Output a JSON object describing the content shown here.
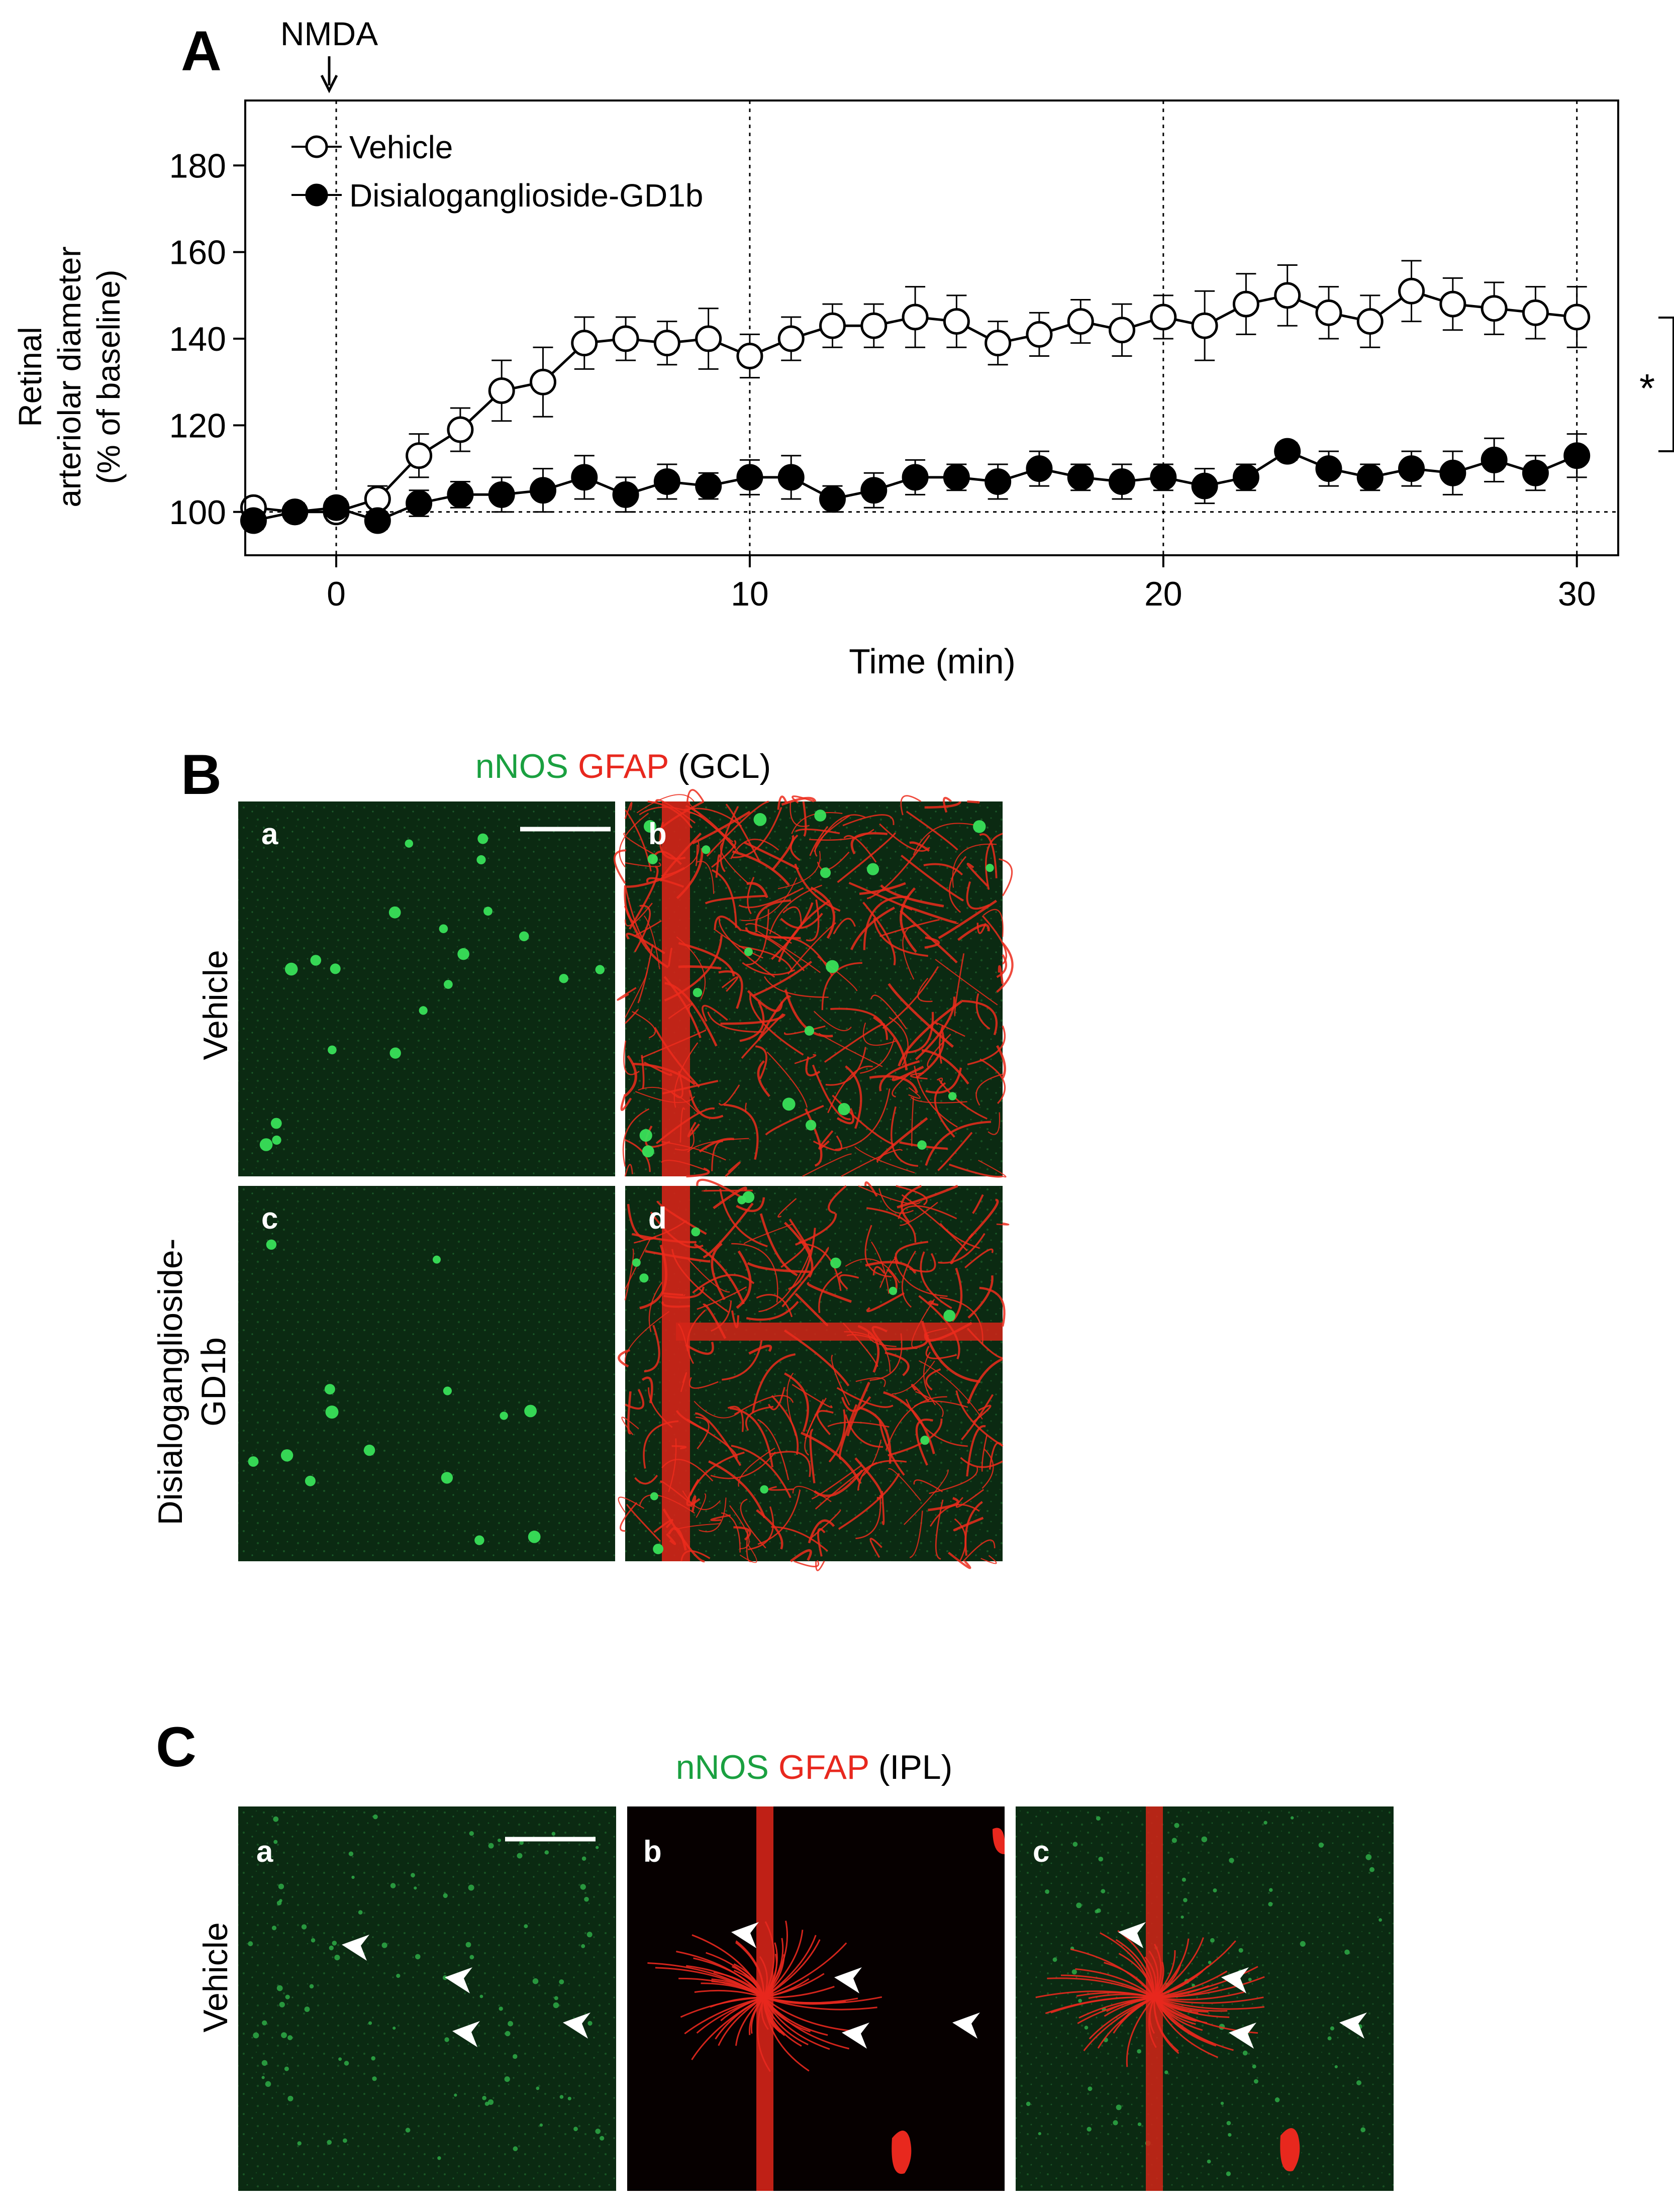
{
  "panel_a": {
    "letter": "A",
    "annotation": "NMDA",
    "significance_marker": "*",
    "ylabel_line1": "Retinal",
    "ylabel_line2": "arteriolar diameter",
    "ylabel_line3": "(% of baseline)",
    "xlabel": "Time (min)"
  },
  "chart_data": {
    "type": "line",
    "xlabel": "Time (min)",
    "ylabel": "Retinal arteriolar diameter (% of baseline)",
    "xlim": [
      -2.2,
      31
    ],
    "ylim": [
      90,
      195
    ],
    "xticks": [
      0,
      10,
      20,
      30
    ],
    "yticks": [
      100,
      120,
      140,
      160,
      180
    ],
    "reference_lines": {
      "x": [
        0,
        10,
        20,
        30
      ],
      "y": [
        100
      ]
    },
    "annotation": {
      "text": "NMDA",
      "x": 0
    },
    "legend_position": "top-left",
    "x": [
      -2,
      -1,
      0,
      1,
      2,
      3,
      4,
      5,
      6,
      7,
      8,
      9,
      10,
      11,
      12,
      13,
      14,
      15,
      16,
      17,
      18,
      19,
      20,
      21,
      22,
      23,
      24,
      25,
      26,
      27,
      28,
      29,
      30
    ],
    "series": [
      {
        "name": "Vehicle",
        "marker": "open-circle",
        "values": [
          101,
          100,
          100,
          103,
          113,
          119,
          128,
          130,
          139,
          140,
          139,
          140,
          136,
          140,
          143,
          143,
          145,
          144,
          139,
          141,
          144,
          142,
          145,
          143,
          148,
          150,
          146,
          144,
          151,
          148,
          147,
          146,
          145
        ],
        "errors": [
          2,
          2,
          2,
          3,
          5,
          5,
          7,
          8,
          6,
          5,
          5,
          7,
          5,
          5,
          5,
          5,
          7,
          6,
          5,
          5,
          5,
          6,
          5,
          8,
          7,
          7,
          6,
          6,
          7,
          6,
          6,
          6,
          7
        ]
      },
      {
        "name": "Disialoganglioside-GD1b",
        "marker": "filled-circle",
        "values": [
          98,
          100,
          101,
          98,
          102,
          104,
          104,
          105,
          108,
          104,
          107,
          106,
          108,
          108,
          103,
          105,
          108,
          108,
          107,
          110,
          108,
          107,
          108,
          106,
          108,
          114,
          110,
          108,
          110,
          109,
          112,
          109,
          113
        ],
        "errors": [
          2,
          2,
          2,
          2,
          3,
          3,
          4,
          5,
          5,
          4,
          4,
          3,
          4,
          5,
          3,
          4,
          4,
          3,
          4,
          4,
          3,
          4,
          3,
          4,
          3,
          2,
          4,
          3,
          4,
          5,
          5,
          4,
          5
        ]
      }
    ]
  },
  "panel_b": {
    "letter": "B",
    "title_part1": "nNOS",
    "title_part2": "GFAP",
    "title_part3": "(GCL)",
    "row1_label": "Vehicle",
    "row2_label_line1": "Disialoganglioside-",
    "row2_label_line2": "GD1b",
    "tiles": [
      "a",
      "b",
      "c",
      "d"
    ]
  },
  "panel_c": {
    "letter": "C",
    "title_part1": "nNOS",
    "title_part2": "GFAP",
    "title_part3": "(IPL)",
    "row_label": "Vehicle",
    "tiles": [
      "a",
      "b",
      "c"
    ]
  },
  "colors": {
    "green": "#1aa040",
    "red": "#e8281e",
    "black": "#000000",
    "tile_green_bg": "#0b2a12",
    "tile_dark_bg": "#060000"
  }
}
